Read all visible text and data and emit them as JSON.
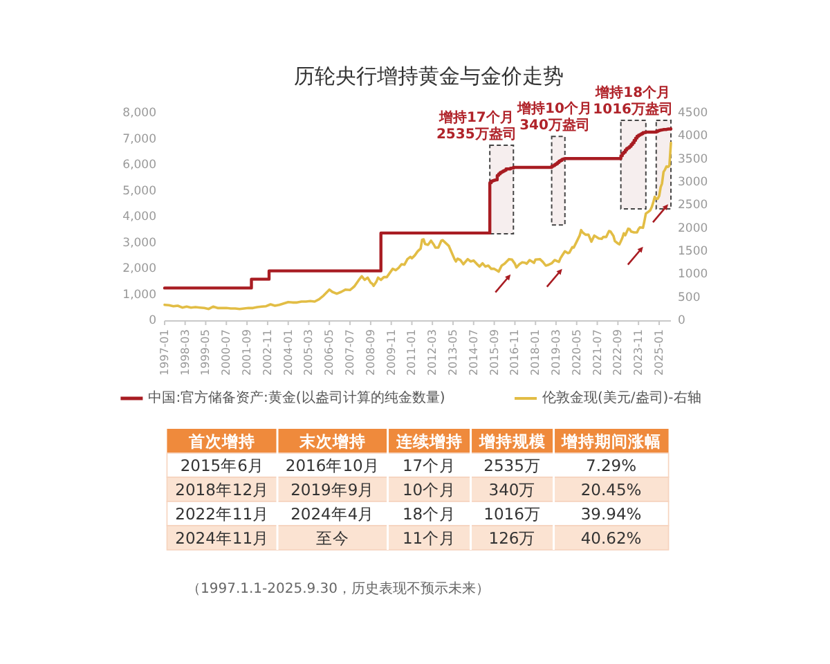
{
  "chart_data": [
    {
      "type": "line",
      "title": "历轮央行增持黄金与金价走势",
      "annotations": [
        "（1997.1.1-2025.9.30，历史表现不预示未来）"
      ],
      "xlim": [
        "1997-01",
        "2025-09"
      ],
      "xticks": [
        "1997-01",
        "1998-03",
        "1999-05",
        "2000-07",
        "2001-09",
        "2002-11",
        "2004-01",
        "2005-03",
        "2006-05",
        "2007-07",
        "2008-09",
        "2009-11",
        "2011-01",
        "2012-03",
        "2013-05",
        "2014-07",
        "2015-09",
        "2016-11",
        "2018-01",
        "2019-03",
        "2020-05",
        "2021-07",
        "2022-09",
        "2023-11",
        "2025-01"
      ],
      "ylim": [
        0,
        8000
      ],
      "yticks": [
        0,
        {
          "value": 1000,
          "label": "1,000"
        },
        {
          "value": 2000,
          "label": "2,000"
        },
        {
          "value": 3000,
          "label": "3,000"
        },
        {
          "value": 4000,
          "label": "4,000"
        },
        {
          "value": 5000,
          "label": "5,000"
        },
        {
          "value": 6000,
          "label": "6,000"
        },
        {
          "value": 7000,
          "label": "7,000"
        },
        {
          "value": 8000,
          "label": "8,000"
        }
      ],
      "y2lim": [
        0,
        4500
      ],
      "y2ticks": [
        0,
        500,
        1000,
        1500,
        2000,
        2500,
        3000,
        3500,
        4000,
        4500
      ],
      "legend": "bottom",
      "series": [
        {
          "name": "中国:官方储备资产:黄金(以盎司计算的纯金数量)",
          "type": "step",
          "color": "#a81c22",
          "x": [
            "1997-01",
            "2001-12",
            "2002-12",
            "2009-04",
            "2015-06",
            "2015-07",
            "2015-08",
            "2015-09",
            "2015-10",
            "2015-11",
            "2015-12",
            "2016-01",
            "2016-02",
            "2016-03",
            "2016-04",
            "2016-05",
            "2016-08",
            "2016-10",
            "2018-12",
            "2019-01",
            "2019-02",
            "2019-03",
            "2019-04",
            "2019-05",
            "2019-06",
            "2019-07",
            "2019-08",
            "2019-09",
            "2022-11",
            "2022-12",
            "2023-01",
            "2023-02",
            "2023-03",
            "2023-04",
            "2023-05",
            "2023-06",
            "2023-07",
            "2023-08",
            "2023-09",
            "2023-10",
            "2023-11",
            "2023-12",
            "2024-01",
            "2024-02",
            "2024-03",
            "2024-04",
            "2024-11",
            "2024-12",
            "2025-01",
            "2025-02",
            "2025-03",
            "2025-04",
            "2025-06",
            "2025-07",
            "2025-09"
          ],
          "values": [
            1270,
            1610,
            1930,
            3390,
            5330,
            5390,
            5410,
            5430,
            5440,
            5610,
            5670,
            5720,
            5750,
            5780,
            5810,
            5860,
            5890,
            5920,
            5960,
            5990,
            6030,
            6060,
            6110,
            6160,
            6190,
            6230,
            6250,
            6260,
            6370,
            6460,
            6510,
            6590,
            6650,
            6680,
            6730,
            6800,
            6870,
            6960,
            7050,
            7120,
            7160,
            7190,
            7220,
            7260,
            7270,
            7280,
            7300,
            7330,
            7350,
            7360,
            7370,
            7380,
            7390,
            7400,
            7410
          ]
        },
        {
          "name": "伦敦金现(美元/盎司)-右轴",
          "type": "line",
          "color": "#e2bd45",
          "axis": "y2",
          "x": [
            "1997-01",
            "1997-04",
            "1997-07",
            "1997-10",
            "1998-01",
            "1998-04",
            "1998-07",
            "1998-10",
            "1999-01",
            "1999-04",
            "1999-07",
            "1999-10",
            "2000-01",
            "2000-04",
            "2000-07",
            "2000-10",
            "2001-01",
            "2001-04",
            "2001-07",
            "2001-10",
            "2002-01",
            "2002-04",
            "2002-07",
            "2002-10",
            "2003-01",
            "2003-04",
            "2003-07",
            "2003-10",
            "2004-01",
            "2004-04",
            "2004-07",
            "2004-10",
            "2005-01",
            "2005-04",
            "2005-07",
            "2005-10",
            "2006-01",
            "2006-05",
            "2006-07",
            "2006-10",
            "2007-01",
            "2007-04",
            "2007-07",
            "2007-10",
            "2008-01",
            "2008-03",
            "2008-05",
            "2008-07",
            "2008-09",
            "2008-10",
            "2008-11",
            "2009-01",
            "2009-02",
            "2009-04",
            "2009-06",
            "2009-08",
            "2009-10",
            "2009-12",
            "2010-02",
            "2010-04",
            "2010-06",
            "2010-08",
            "2010-10",
            "2010-12",
            "2011-01",
            "2011-03",
            "2011-05",
            "2011-07",
            "2011-08",
            "2011-09",
            "2011-10",
            "2011-12",
            "2012-02",
            "2012-04",
            "2012-05",
            "2012-07",
            "2012-09",
            "2012-10",
            "2012-12",
            "2013-02",
            "2013-04",
            "2013-06",
            "2013-07",
            "2013-08",
            "2013-10",
            "2013-12",
            "2014-03",
            "2014-05",
            "2014-07",
            "2014-09",
            "2014-11",
            "2015-01",
            "2015-03",
            "2015-05",
            "2015-07",
            "2015-09",
            "2015-11",
            "2015-12",
            "2016-02",
            "2016-04",
            "2016-07",
            "2016-09",
            "2016-11",
            "2016-12",
            "2017-02",
            "2017-04",
            "2017-06",
            "2017-07",
            "2017-09",
            "2017-12",
            "2018-01",
            "2018-04",
            "2018-06",
            "2018-08",
            "2018-10",
            "2018-12",
            "2019-02",
            "2019-05",
            "2019-06",
            "2019-07",
            "2019-09",
            "2019-11",
            "2019-12",
            "2020-02",
            "2020-03",
            "2020-05",
            "2020-07",
            "2020-08",
            "2020-09",
            "2020-11",
            "2021-01",
            "2021-03",
            "2021-05",
            "2021-06",
            "2021-08",
            "2021-10",
            "2021-11",
            "2022-01",
            "2022-03",
            "2022-04",
            "2022-06",
            "2022-07",
            "2022-09",
            "2022-10",
            "2022-11",
            "2022-12",
            "2023-01",
            "2023-02",
            "2023-04",
            "2023-05",
            "2023-06",
            "2023-08",
            "2023-10",
            "2023-11",
            "2023-12",
            "2024-02",
            "2024-03",
            "2024-04",
            "2024-05",
            "2024-07",
            "2024-08",
            "2024-09",
            "2024-10",
            "2024-11",
            "2024-12",
            "2025-01",
            "2025-02",
            "2025-03",
            "2025-04",
            "2025-05",
            "2025-06",
            "2025-07",
            "2025-08",
            "2025-09"
          ],
          "values": [
            350,
            340,
            320,
            330,
            290,
            310,
            290,
            300,
            290,
            280,
            260,
            310,
            280,
            280,
            280,
            270,
            270,
            260,
            270,
            280,
            280,
            300,
            310,
            320,
            360,
            330,
            350,
            380,
            410,
            400,
            400,
            420,
            420,
            430,
            420,
            470,
            550,
            680,
            630,
            590,
            630,
            680,
            670,
            750,
            890,
            970,
            890,
            940,
            830,
            810,
            760,
            860,
            940,
            890,
            950,
            950,
            1040,
            1130,
            1100,
            1150,
            1230,
            1220,
            1340,
            1390,
            1360,
            1420,
            1510,
            1570,
            1760,
            1770,
            1670,
            1650,
            1740,
            1650,
            1590,
            1590,
            1740,
            1750,
            1690,
            1630,
            1490,
            1340,
            1290,
            1350,
            1320,
            1230,
            1340,
            1290,
            1310,
            1240,
            1180,
            1250,
            1180,
            1200,
            1130,
            1130,
            1090,
            1070,
            1200,
            1240,
            1340,
            1330,
            1240,
            1160,
            1230,
            1270,
            1260,
            1240,
            1320,
            1260,
            1330,
            1340,
            1280,
            1200,
            1220,
            1250,
            1320,
            1280,
            1360,
            1410,
            1510,
            1470,
            1480,
            1600,
            1590,
            1720,
            1850,
            1970,
            1920,
            1870,
            1870,
            1720,
            1850,
            1830,
            1790,
            1780,
            1820,
            1820,
            1950,
            1940,
            1840,
            1730,
            1680,
            1660,
            1730,
            1800,
            1900,
            1860,
            2000,
            1990,
            1940,
            1920,
            1920,
            1990,
            2030,
            2020,
            2160,
            2330,
            2350,
            2400,
            2470,
            2570,
            2690,
            2650,
            2650,
            2710,
            2900,
            2980,
            3230,
            3280,
            3350,
            3340,
            3370,
            3860
          ]
        }
      ],
      "bands": [
        {
          "axis": "x",
          "from": "2015-06",
          "to": "2016-10",
          "label": "增持17个月 2535万盎司"
        },
        {
          "axis": "x",
          "from": "2018-12",
          "to": "2019-09",
          "label": "增持10个月 340万盎司"
        },
        {
          "axis": "x",
          "from": "2022-11",
          "to": "2024-04",
          "label": "增持18个月 1016万盎司"
        },
        {
          "axis": "x",
          "from": "2024-11",
          "to": "2025-09"
        }
      ]
    },
    {
      "type": "other",
      "categories": [
        "首次增持",
        "末次增持",
        "连续增持",
        "增持规模",
        "增持期间涨幅"
      ],
      "annotations": [
        "2015年6月",
        "2016年10月",
        "17个月",
        "2535万",
        "7.29%",
        "2018年12月",
        "2019年9月",
        "10个月",
        "340万",
        "20.45%",
        "2022年11月",
        "2024年4月",
        "18个月",
        "1016万",
        "39.94%",
        "2024年11月",
        "至今",
        "11个月",
        "126万",
        "40.62%"
      ]
    }
  ]
}
